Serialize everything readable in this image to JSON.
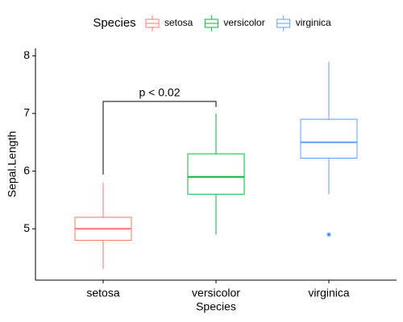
{
  "chart_data": {
    "type": "boxplot",
    "legend_title": "Species",
    "legend_position": "top",
    "x_label": "Species",
    "y_label": "Sepal.Length",
    "categories": [
      "setosa",
      "versicolor",
      "virginica"
    ],
    "colors": [
      "#F8766D",
      "#00BA38",
      "#619CFF"
    ],
    "boxes": [
      {
        "min": 4.3,
        "q1": 4.8,
        "median": 5.0,
        "q3": 5.2,
        "max": 5.8,
        "outliers": []
      },
      {
        "min": 4.9,
        "q1": 5.6,
        "median": 5.9,
        "q3": 6.3,
        "max": 7.0,
        "outliers": []
      },
      {
        "min": 5.6,
        "q1": 6.225,
        "median": 6.5,
        "q3": 6.9,
        "max": 7.9,
        "outliers": [
          4.9
        ]
      }
    ],
    "ylim": [
      4.11,
      8.13
    ],
    "yticks": [
      5,
      6,
      7,
      8
    ],
    "annotation": {
      "text": "p < 0.02",
      "from": 0,
      "to": 1
    }
  }
}
